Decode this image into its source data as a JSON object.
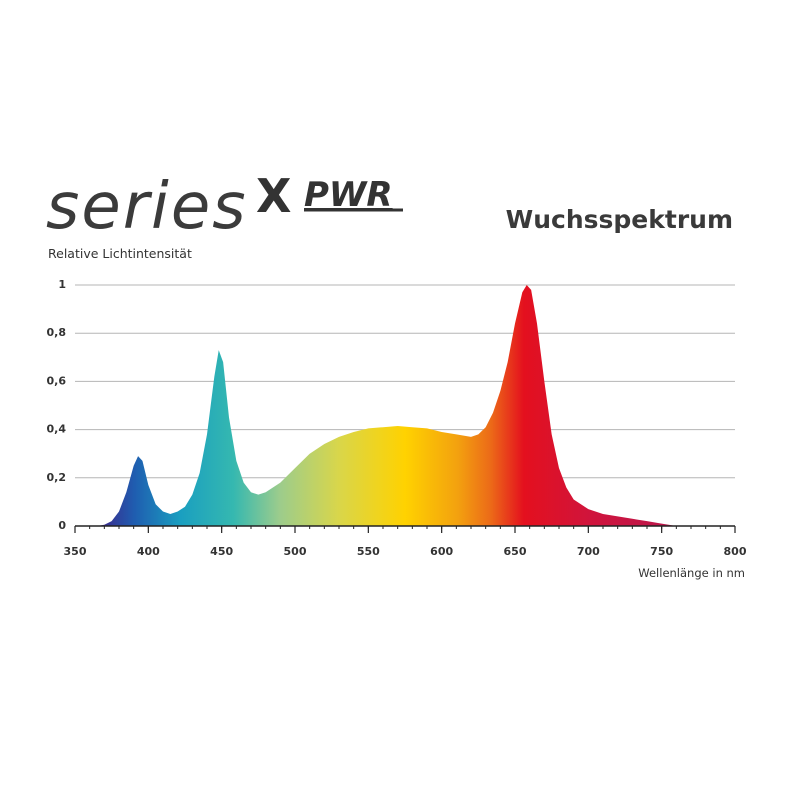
{
  "chart_data": {
    "type": "area",
    "logo_text": [
      "series",
      "X",
      "PWR"
    ],
    "title": "Wuchsspektrum",
    "y_label": "Relative Lichtintensität",
    "x_label": "Wellenlänge in nm",
    "x": [
      365,
      370,
      375,
      380,
      385,
      390,
      393,
      396,
      400,
      405,
      410,
      415,
      420,
      425,
      430,
      435,
      440,
      445,
      448,
      451,
      455,
      460,
      465,
      470,
      475,
      480,
      490,
      500,
      510,
      520,
      530,
      540,
      550,
      560,
      570,
      580,
      590,
      600,
      610,
      620,
      625,
      630,
      635,
      640,
      645,
      650,
      655,
      658,
      661,
      665,
      670,
      675,
      680,
      685,
      690,
      700,
      710,
      720,
      730,
      740,
      750,
      760
    ],
    "values": [
      0,
      0.005,
      0.02,
      0.06,
      0.14,
      0.25,
      0.29,
      0.27,
      0.17,
      0.09,
      0.06,
      0.05,
      0.06,
      0.08,
      0.13,
      0.22,
      0.38,
      0.62,
      0.73,
      0.68,
      0.45,
      0.27,
      0.18,
      0.14,
      0.13,
      0.14,
      0.18,
      0.24,
      0.3,
      0.34,
      0.37,
      0.39,
      0.405,
      0.41,
      0.415,
      0.41,
      0.405,
      0.39,
      0.38,
      0.37,
      0.38,
      0.41,
      0.47,
      0.56,
      0.68,
      0.84,
      0.97,
      1.0,
      0.98,
      0.84,
      0.6,
      0.38,
      0.24,
      0.16,
      0.11,
      0.07,
      0.05,
      0.04,
      0.03,
      0.02,
      0.01,
      0
    ],
    "xlim": [
      350,
      800
    ],
    "xticks": [
      350,
      400,
      450,
      500,
      550,
      600,
      650,
      700,
      750,
      800
    ],
    "ylim": [
      0,
      1
    ],
    "yticks": [
      0,
      {
        "value": 0.2,
        "label": "0,2"
      },
      {
        "value": 0.4,
        "label": "0,4"
      },
      {
        "value": 0.6,
        "label": "0,6"
      },
      {
        "value": 0.8,
        "label": "0,8"
      },
      1
    ],
    "grid": true
  }
}
